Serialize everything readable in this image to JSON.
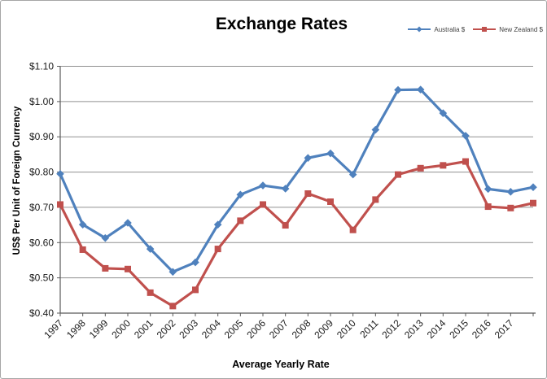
{
  "window": {
    "background": "#ffffff",
    "border_color": "#a6a6a6"
  },
  "colors": {
    "gridline": "#909090",
    "axis": "#595959",
    "tick_text": "#1a1a1a",
    "legend_text": "#404040",
    "title_text": "#000000"
  },
  "chart_data": {
    "type": "line",
    "title": "Exchange Rates",
    "xlabel": "Average Yearly Rate",
    "ylabel": "US$ Per Unit of Foreign Currency",
    "categories": [
      "1997",
      "1998",
      "1999",
      "2000",
      "2001",
      "2002",
      "2003",
      "2004",
      "2005",
      "2006",
      "2007",
      "2008",
      "2009",
      "2010",
      "2011",
      "2012",
      "2013",
      "2014",
      "2015",
      "2016",
      "2017",
      ""
    ],
    "series": [
      {
        "name": "Australia $",
        "color": "#4F81BD",
        "marker": "diamond",
        "values": [
          0.795,
          0.651,
          0.613,
          0.656,
          0.582,
          0.517,
          0.544,
          0.651,
          0.736,
          0.762,
          0.753,
          0.84,
          0.853,
          0.793,
          0.92,
          1.033,
          1.034,
          0.967,
          0.903,
          0.752,
          0.744,
          0.757
        ]
      },
      {
        "name": "New Zealand $",
        "color": "#C0504D",
        "marker": "square",
        "values": [
          0.708,
          0.58,
          0.527,
          0.525,
          0.458,
          0.42,
          0.466,
          0.582,
          0.662,
          0.708,
          0.649,
          0.739,
          0.716,
          0.636,
          0.722,
          0.793,
          0.811,
          0.819,
          0.83,
          0.702,
          0.698,
          0.712
        ]
      }
    ],
    "ylim": [
      0.4,
      1.1
    ],
    "ytick_step": 0.1,
    "ytick_prefix": "$",
    "grid": true,
    "legend_position": "top-right",
    "x_label_rotation": -45
  }
}
